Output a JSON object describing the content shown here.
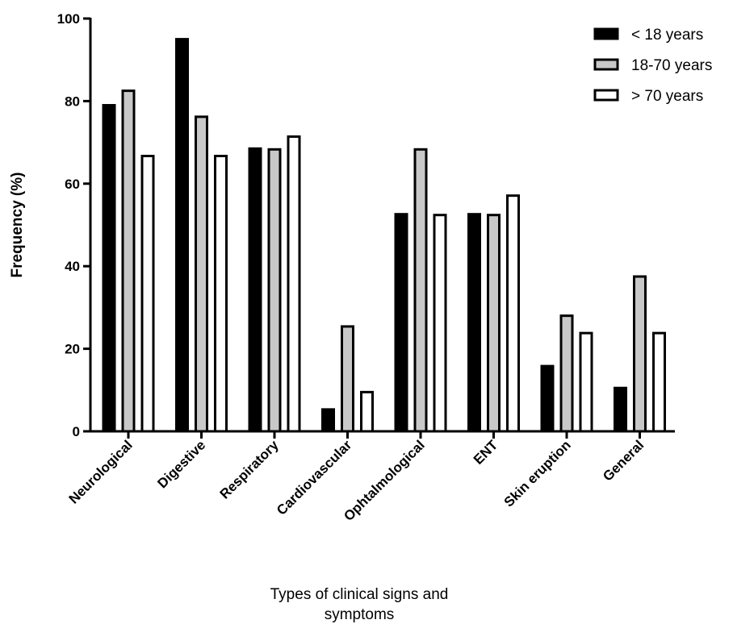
{
  "chart_data": {
    "type": "bar",
    "title": "",
    "xlabel_lines": [
      "Types of clinical signs and",
      "symptoms"
    ],
    "ylabel": "Frequency (%)",
    "ylim": [
      0,
      100
    ],
    "yticks": [
      0,
      20,
      40,
      60,
      80,
      100
    ],
    "grid": false,
    "legend_position": "top-right",
    "categories": [
      "Neurological",
      "Digestive",
      "Respiratory",
      "Cardiovascular",
      "Ophtalmological",
      "ENT",
      "Skin eruption",
      "General"
    ],
    "series": [
      {
        "name": "< 18 years",
        "fill": "#000000",
        "values": [
          79,
          95,
          68.5,
          5.3,
          52.6,
          52.6,
          15.8,
          10.5
        ]
      },
      {
        "name": "18-70 years",
        "fill": "#c8c8c8",
        "values": [
          82.5,
          76.2,
          68.3,
          25.4,
          68.3,
          52.4,
          28,
          37.5
        ]
      },
      {
        "name": "> 70 years",
        "fill": "#ffffff",
        "values": [
          66.7,
          66.7,
          71.4,
          9.5,
          52.4,
          57.1,
          23.8,
          23.8
        ]
      }
    ]
  }
}
